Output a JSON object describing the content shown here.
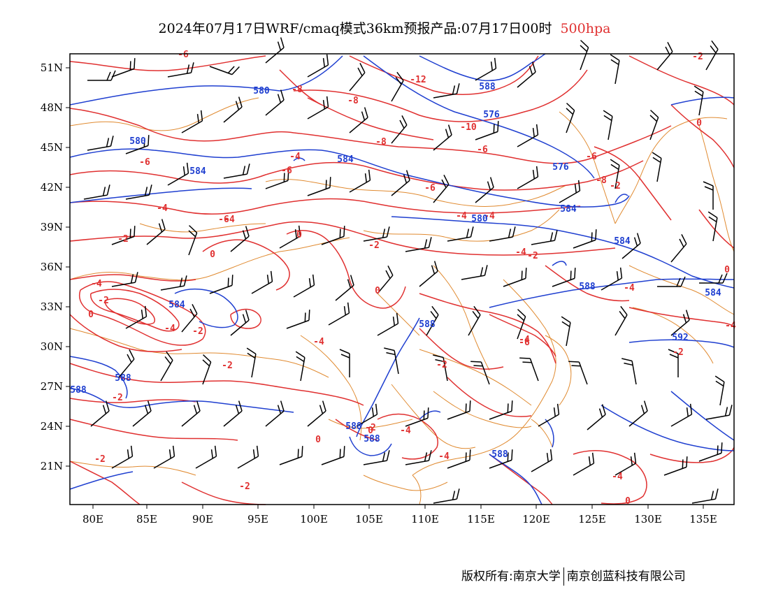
{
  "title": {
    "main": "2024年07月17日WRF/cmaq模式36km预报产品:07月17日00时",
    "level": "500hpa"
  },
  "axes": {
    "lon_ticks": [
      "80E",
      "85E",
      "90E",
      "95E",
      "100E",
      "105E",
      "110E",
      "115E",
      "120E",
      "125E",
      "130E",
      "135E"
    ],
    "lat_ticks": [
      "51N",
      "48N",
      "45N",
      "42N",
      "39N",
      "36N",
      "33N",
      "30N",
      "27N",
      "24N",
      "21N"
    ]
  },
  "colors": {
    "temperature": "#e03030",
    "height": "#1f3fd0",
    "boundary": "#e08a30",
    "wind": "#000000"
  },
  "labels": {
    "temperature": [
      "-6",
      "-8",
      "-12",
      "-8",
      "-10",
      "-8",
      "-6",
      "-4",
      "-6",
      "-6",
      "-6",
      "-4",
      "-8",
      "-6",
      "-6",
      "-4",
      "-2",
      "-4",
      "-2",
      "-4",
      "0",
      "0",
      "-2",
      "-4",
      "0",
      "-4",
      "-2",
      "-4",
      "0",
      "-2",
      "-4",
      "-2",
      "-2",
      "-2",
      "0",
      "-2",
      "-2",
      "-2",
      "-4",
      "0",
      "-4",
      "0",
      "-4",
      "-2",
      "0",
      "-2",
      "-2",
      "-4",
      "-4",
      "0",
      "-4",
      "-6"
    ],
    "height": [
      "580",
      "588",
      "576",
      "580",
      "584",
      "584",
      "576",
      "584",
      "580",
      "584",
      "584",
      "588",
      "588",
      "584",
      "588",
      "588",
      "592",
      "588",
      "588",
      "588"
    ]
  },
  "footer": {
    "left": "版权所有:南京大学",
    "right": "南京创蓝科技有限公司"
  }
}
